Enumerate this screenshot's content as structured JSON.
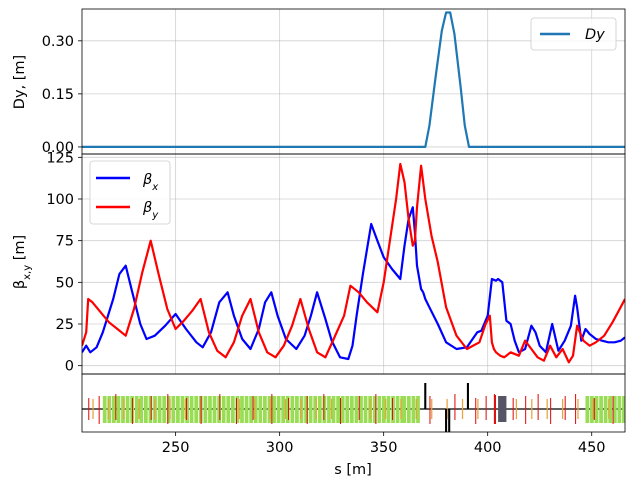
{
  "chart_data": [
    {
      "type": "line",
      "ylabel": "Dy, [m]",
      "ylim": [
        -0.02,
        0.39
      ],
      "xlim": [
        205,
        466
      ],
      "yticks": [
        "0.00",
        "0.15",
        "0.30"
      ],
      "grid": true,
      "legend_position": "top-right",
      "series": [
        {
          "name": "Dy",
          "color": "#1f77b4",
          "x": [
            205,
            370,
            372,
            375,
            378,
            380,
            382,
            384,
            387,
            389,
            391,
            466
          ],
          "y": [
            0,
            0,
            0.06,
            0.2,
            0.33,
            0.38,
            0.38,
            0.32,
            0.17,
            0.06,
            0,
            0
          ]
        }
      ]
    },
    {
      "type": "line",
      "ylabel": "βx,y [m]",
      "ylim": [
        -5,
        127
      ],
      "xlim": [
        205,
        466
      ],
      "yticks": [
        "0",
        "25",
        "50",
        "75",
        "100",
        "125"
      ],
      "grid": true,
      "legend_position": "top-left",
      "series": [
        {
          "name": "βx",
          "color": "#0000ff",
          "x": [
            205,
            207,
            209,
            212,
            215,
            220,
            223,
            226,
            229,
            233,
            236,
            240,
            245,
            250,
            255,
            260,
            263,
            267,
            271,
            275,
            278,
            282,
            286,
            290,
            293,
            296,
            299,
            303,
            308,
            312,
            315,
            318,
            322,
            325,
            329,
            333,
            335,
            337,
            340,
            344,
            347,
            350,
            354,
            358,
            360,
            362,
            364,
            365,
            366,
            368,
            369,
            370,
            372,
            376,
            380,
            385,
            390,
            395,
            397,
            400,
            402,
            404,
            405,
            407,
            409,
            411,
            413,
            415,
            418,
            421,
            423,
            425,
            428,
            431,
            434,
            437,
            440,
            442,
            443,
            445,
            447,
            449,
            452,
            455,
            458,
            461,
            464,
            466
          ],
          "y": [
            8,
            12,
            8,
            11,
            20,
            40,
            55,
            60,
            45,
            25,
            16,
            18,
            24,
            31,
            22,
            14,
            11,
            20,
            38,
            44,
            30,
            16,
            10,
            22,
            38,
            44,
            30,
            16,
            10,
            18,
            30,
            44,
            28,
            15,
            5,
            4,
            12,
            30,
            55,
            85,
            75,
            65,
            58,
            52,
            72,
            88,
            95,
            80,
            60,
            46,
            44,
            40,
            35,
            25,
            14,
            10,
            11,
            20,
            21,
            30,
            52,
            51,
            52,
            50,
            27,
            25,
            15,
            8,
            10,
            24,
            20,
            12,
            8,
            25,
            9,
            15,
            24,
            42,
            35,
            15,
            22,
            19,
            16,
            15,
            14,
            14,
            15,
            17
          ]
        },
        {
          "name": "βy",
          "color": "#ff0000",
          "x": [
            205,
            207,
            208,
            210,
            214,
            218,
            222,
            226,
            230,
            234,
            238,
            242,
            246,
            250,
            254,
            258,
            262,
            266,
            270,
            274,
            278,
            282,
            286,
            290,
            294,
            298,
            302,
            306,
            310,
            314,
            318,
            322,
            326,
            331,
            334,
            338,
            342,
            347,
            350,
            353,
            356,
            358,
            360,
            362,
            364,
            365,
            366,
            368,
            370,
            373,
            376,
            380,
            385,
            390,
            396,
            399,
            401,
            402,
            403,
            404,
            406,
            408,
            411,
            415,
            418,
            421,
            424,
            427,
            430,
            433,
            436,
            439,
            441,
            443,
            446,
            449,
            452,
            456,
            460,
            463,
            466
          ],
          "y": [
            12,
            20,
            40,
            38,
            32,
            26,
            22,
            18,
            34,
            56,
            75,
            54,
            34,
            22,
            27,
            33,
            40,
            20,
            9,
            5,
            14,
            30,
            40,
            20,
            8,
            5,
            12,
            24,
            40,
            22,
            8,
            5,
            16,
            30,
            48,
            44,
            38,
            32,
            50,
            75,
            100,
            121,
            110,
            88,
            72,
            75,
            95,
            120,
            100,
            78,
            62,
            35,
            18,
            10,
            14,
            25,
            30,
            14,
            10,
            8,
            6,
            5,
            8,
            6,
            15,
            10,
            5,
            3,
            12,
            5,
            10,
            2,
            6,
            24,
            15,
            12,
            14,
            18,
            26,
            33,
            40
          ]
        }
      ]
    },
    {
      "type": "other",
      "description": "beam line element layout",
      "xlabel": "s [m]",
      "xlim": [
        205,
        466
      ],
      "xticks": [
        "250",
        "300",
        "350",
        "400",
        "450"
      ]
    }
  ]
}
